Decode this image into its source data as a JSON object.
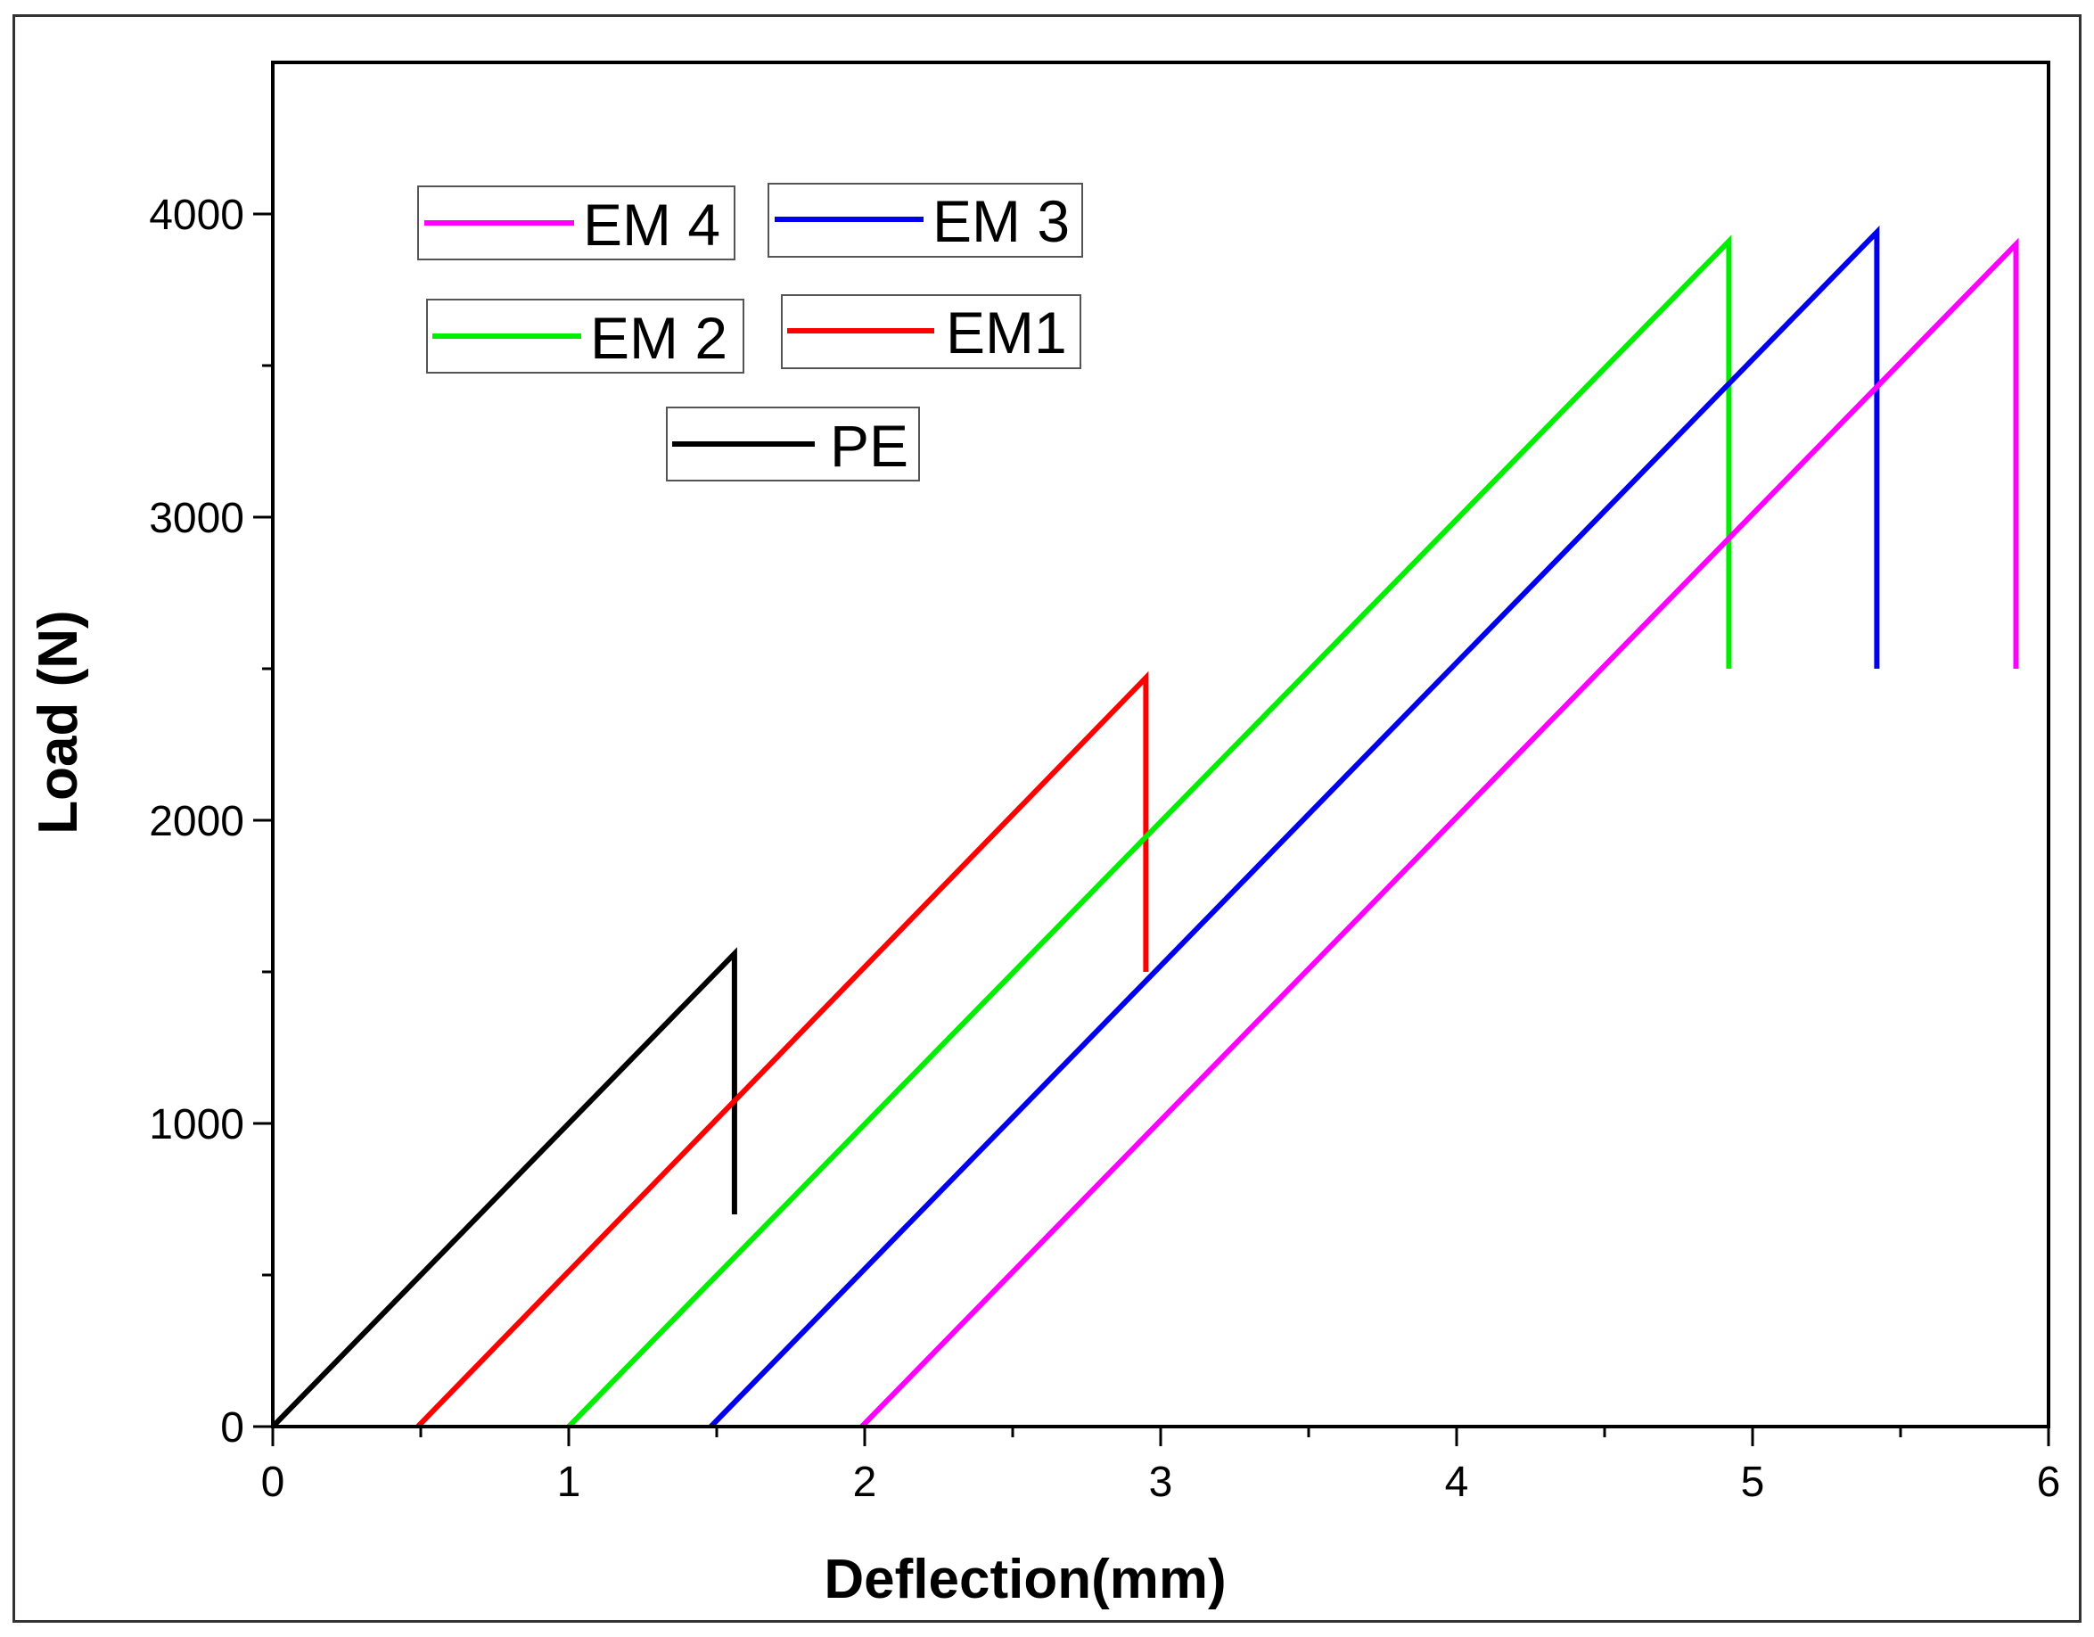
{
  "chart_data": {
    "type": "line",
    "title": "",
    "xlabel": "Deflection(mm)",
    "ylabel": "Load (N)",
    "xlim": [
      0,
      6
    ],
    "ylim": [
      0,
      4500
    ],
    "xticks": [
      0,
      1,
      2,
      3,
      4,
      5,
      6
    ],
    "xtick_labels": [
      "0",
      "1",
      "2",
      "3",
      "4",
      "5",
      "6"
    ],
    "yticks": [
      0,
      1000,
      2000,
      3000,
      4000
    ],
    "ytick_labels": [
      "0",
      "1000",
      "2000",
      "3000",
      "4000"
    ],
    "grid": false,
    "legend_position": "top-left",
    "series": [
      {
        "name": "PE",
        "color": "#000000",
        "x": [
          0.0,
          1.56,
          1.56
        ],
        "y": [
          0,
          1560,
          700
        ]
      },
      {
        "name": "EM1",
        "color": "#ff0000",
        "x": [
          0.49,
          2.95,
          2.95
        ],
        "y": [
          0,
          2470,
          1500
        ]
      },
      {
        "name": "EM 2",
        "color": "#00ee00",
        "x": [
          1.0,
          4.92,
          4.92
        ],
        "y": [
          0,
          3910,
          2500
        ]
      },
      {
        "name": "EM 3",
        "color": "#0000ee",
        "x": [
          1.48,
          5.42,
          5.42
        ],
        "y": [
          0,
          3940,
          2500
        ]
      },
      {
        "name": "EM 4",
        "color": "#ff00ff",
        "x": [
          1.99,
          5.89,
          5.89
        ],
        "y": [
          0,
          3900,
          2500
        ]
      }
    ],
    "legend": [
      {
        "label": "EM 4",
        "series": "EM 4"
      },
      {
        "label": "EM 3",
        "series": "EM 3"
      },
      {
        "label": "EM 2",
        "series": "EM 2"
      },
      {
        "label": "EM1",
        "series": "EM1"
      },
      {
        "label": "PE",
        "series": "PE"
      }
    ]
  }
}
